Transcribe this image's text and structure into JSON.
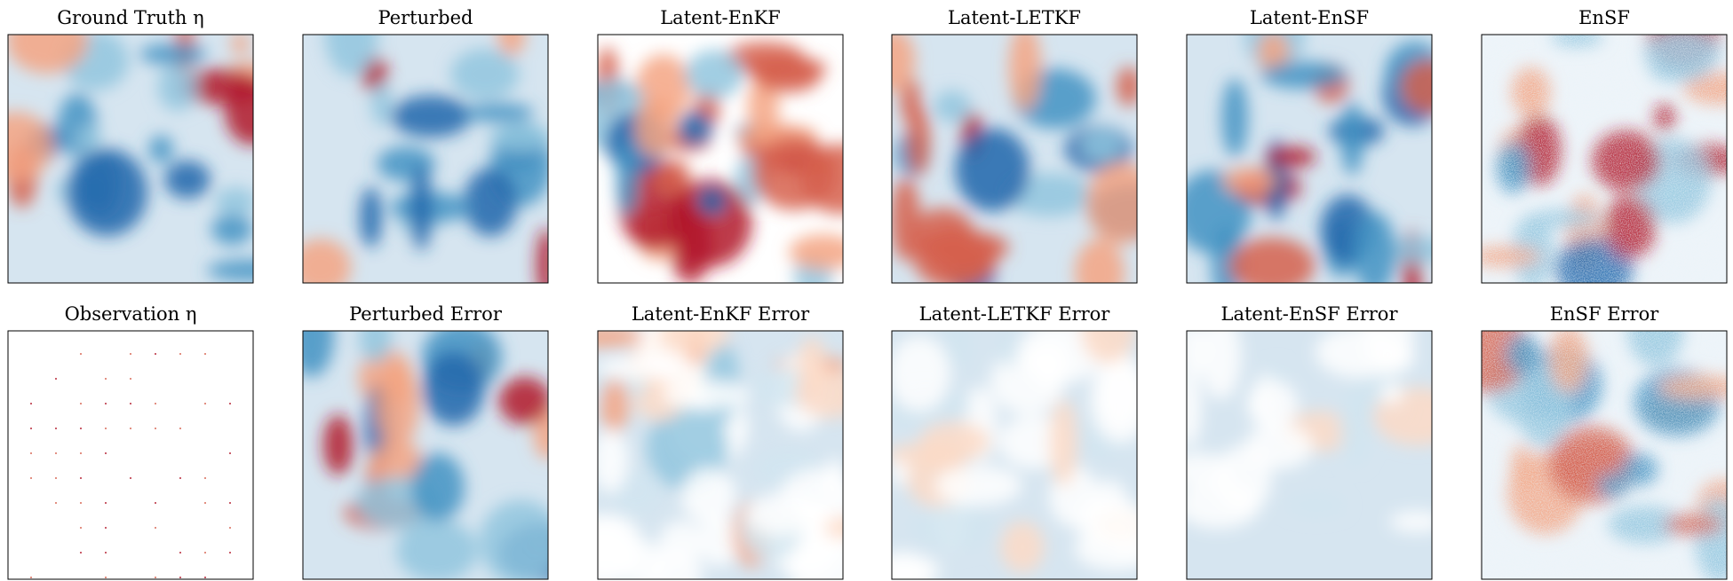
{
  "panels": [
    {
      "title": "Ground Truth η"
    },
    {
      "title": "Perturbed"
    },
    {
      "title": "Latent-EnKF"
    },
    {
      "title": "Latent-LETKF"
    },
    {
      "title": "Latent-EnSF"
    },
    {
      "title": "EnSF"
    },
    {
      "title": "Observation η"
    },
    {
      "title": "Perturbed Error"
    },
    {
      "title": "Latent-EnKF Error"
    },
    {
      "title": "Latent-LETKF Error"
    },
    {
      "title": "Latent-EnSF Error"
    },
    {
      "title": "EnSF Error"
    }
  ]
}
